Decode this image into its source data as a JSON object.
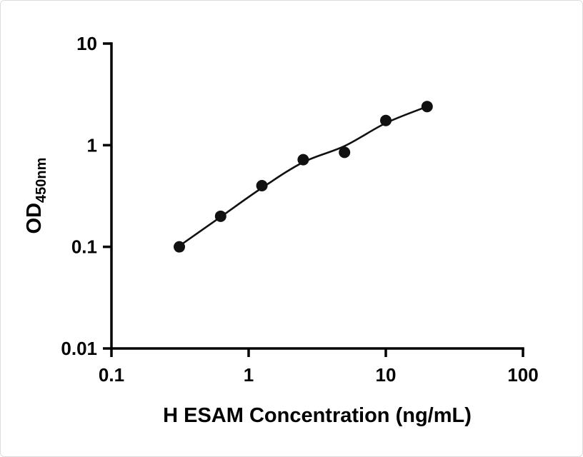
{
  "chart_data": {
    "type": "scatter",
    "title": "",
    "xlabel": "H ESAM Concentration (ng/mL)",
    "ylabel_main": "OD",
    "ylabel_sub": "450nm",
    "x_scale": "log",
    "y_scale": "log",
    "xlim": [
      0.1,
      100
    ],
    "ylim": [
      0.01,
      10
    ],
    "grid": false,
    "legend": "none",
    "x_ticks": [
      {
        "v": 0.1,
        "label": "0.1"
      },
      {
        "v": 1,
        "label": "1"
      },
      {
        "v": 10,
        "label": "10"
      },
      {
        "v": 100,
        "label": "100"
      }
    ],
    "y_ticks": [
      {
        "v": 0.01,
        "label": "0.01"
      },
      {
        "v": 0.1,
        "label": "0.1"
      },
      {
        "v": 1,
        "label": "1"
      },
      {
        "v": 10,
        "label": "10"
      }
    ],
    "points": [
      {
        "x": 0.3125,
        "y": 0.1
      },
      {
        "x": 0.625,
        "y": 0.2
      },
      {
        "x": 1.25,
        "y": 0.4
      },
      {
        "x": 2.5,
        "y": 0.72
      },
      {
        "x": 5,
        "y": 0.85
      },
      {
        "x": 10,
        "y": 1.75
      },
      {
        "x": 20,
        "y": 2.4
      }
    ],
    "curve": [
      {
        "x": 0.3125,
        "y": 0.102
      },
      {
        "x": 0.625,
        "y": 0.197
      },
      {
        "x": 1.25,
        "y": 0.38
      },
      {
        "x": 2.5,
        "y": 0.68
      },
      {
        "x": 5,
        "y": 0.98
      },
      {
        "x": 10,
        "y": 1.65
      },
      {
        "x": 20,
        "y": 2.4
      }
    ],
    "colors": {
      "point": "#111111",
      "curve": "#111111",
      "axis": "#000000"
    }
  }
}
